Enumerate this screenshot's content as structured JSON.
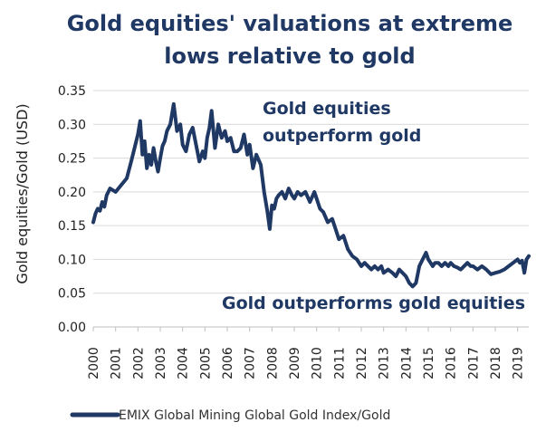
{
  "chart_data": {
    "type": "line",
    "title_lines": [
      "Gold equities' valuations at extreme",
      "lows relative to gold"
    ],
    "ylabel": "Gold equities/Gold (USD)",
    "xlabel": "",
    "ylim": [
      0,
      0.35
    ],
    "yticks": [
      "0.00",
      "0.05",
      "0.10",
      "0.15",
      "0.20",
      "0.25",
      "0.30",
      "0.35"
    ],
    "xlim": [
      2000,
      2019.5
    ],
    "xticks": [
      "2000",
      "2001",
      "2002",
      "2003",
      "2004",
      "2005",
      "2006",
      "2007",
      "2008",
      "2009",
      "2010",
      "2011",
      "2012",
      "2013",
      "2014",
      "2015",
      "2016",
      "2017",
      "2018",
      "2019"
    ],
    "grid": true,
    "legend_position": "bottom",
    "annotations": [
      {
        "text": "Gold equities",
        "region": "upper-middle"
      },
      {
        "text": "outperform gold",
        "region": "upper-middle"
      },
      {
        "text": "Gold outperforms gold equities",
        "region": "lower-right"
      }
    ],
    "series": [
      {
        "name": "EMIX Global Mining Global Gold Index/Gold",
        "color": "#1f3864",
        "x": [
          2000.0,
          2000.1,
          2000.2,
          2000.3,
          2000.4,
          2000.5,
          2000.6,
          2000.75,
          2001.0,
          2001.25,
          2001.5,
          2001.7,
          2001.85,
          2002.0,
          2002.1,
          2002.2,
          2002.3,
          2002.4,
          2002.5,
          2002.6,
          2002.7,
          2002.8,
          2002.9,
          2003.0,
          2003.1,
          2003.2,
          2003.3,
          2003.45,
          2003.6,
          2003.75,
          2003.9,
          2004.0,
          2004.15,
          2004.3,
          2004.45,
          2004.6,
          2004.75,
          2004.9,
          2005.0,
          2005.1,
          2005.2,
          2005.3,
          2005.45,
          2005.6,
          2005.75,
          2005.9,
          2006.0,
          2006.15,
          2006.3,
          2006.45,
          2006.6,
          2006.75,
          2006.9,
          2007.0,
          2007.15,
          2007.3,
          2007.5,
          2007.65,
          2007.8,
          2007.9,
          2008.0,
          2008.1,
          2008.2,
          2008.3,
          2008.45,
          2008.6,
          2008.75,
          2008.9,
          2009.0,
          2009.15,
          2009.3,
          2009.5,
          2009.7,
          2009.9,
          2010.0,
          2010.15,
          2010.3,
          2010.5,
          2010.7,
          2010.85,
          2011.0,
          2011.2,
          2011.4,
          2011.6,
          2011.8,
          2012.0,
          2012.15,
          2012.3,
          2012.45,
          2012.6,
          2012.75,
          2012.9,
          2013.0,
          2013.2,
          2013.4,
          2013.55,
          2013.7,
          2013.85,
          2014.0,
          2014.15,
          2014.3,
          2014.45,
          2014.6,
          2014.75,
          2014.9,
          2015.0,
          2015.1,
          2015.2,
          2015.3,
          2015.45,
          2015.6,
          2015.75,
          2015.9,
          2016.0,
          2016.15,
          2016.3,
          2016.45,
          2016.6,
          2016.75,
          2016.9,
          2017.0,
          2017.2,
          2017.4,
          2017.6,
          2017.8,
          2018.0,
          2018.2,
          2018.4,
          2018.6,
          2018.8,
          2019.0,
          2019.1,
          2019.2,
          2019.3,
          2019.4,
          2019.5
        ],
        "values": [
          0.155,
          0.168,
          0.175,
          0.172,
          0.185,
          0.178,
          0.195,
          0.205,
          0.2,
          0.21,
          0.22,
          0.245,
          0.265,
          0.285,
          0.305,
          0.255,
          0.275,
          0.235,
          0.255,
          0.24,
          0.265,
          0.245,
          0.23,
          0.25,
          0.268,
          0.275,
          0.29,
          0.3,
          0.33,
          0.29,
          0.3,
          0.27,
          0.26,
          0.285,
          0.295,
          0.27,
          0.245,
          0.26,
          0.25,
          0.28,
          0.295,
          0.32,
          0.265,
          0.3,
          0.28,
          0.29,
          0.275,
          0.28,
          0.26,
          0.26,
          0.265,
          0.285,
          0.255,
          0.27,
          0.235,
          0.255,
          0.24,
          0.2,
          0.17,
          0.145,
          0.18,
          0.175,
          0.19,
          0.195,
          0.2,
          0.19,
          0.205,
          0.195,
          0.19,
          0.2,
          0.195,
          0.2,
          0.185,
          0.2,
          0.19,
          0.175,
          0.17,
          0.155,
          0.16,
          0.145,
          0.13,
          0.135,
          0.115,
          0.105,
          0.1,
          0.09,
          0.095,
          0.09,
          0.085,
          0.09,
          0.085,
          0.09,
          0.08,
          0.085,
          0.08,
          0.075,
          0.085,
          0.08,
          0.075,
          0.065,
          0.06,
          0.065,
          0.09,
          0.1,
          0.11,
          0.1,
          0.095,
          0.09,
          0.095,
          0.095,
          0.09,
          0.095,
          0.09,
          0.095,
          0.09,
          0.088,
          0.085,
          0.09,
          0.095,
          0.09,
          0.09,
          0.085,
          0.09,
          0.085,
          0.078,
          0.08,
          0.082,
          0.085,
          0.09,
          0.095,
          0.1,
          0.095,
          0.098,
          0.08,
          0.1,
          0.105
        ]
      }
    ]
  }
}
